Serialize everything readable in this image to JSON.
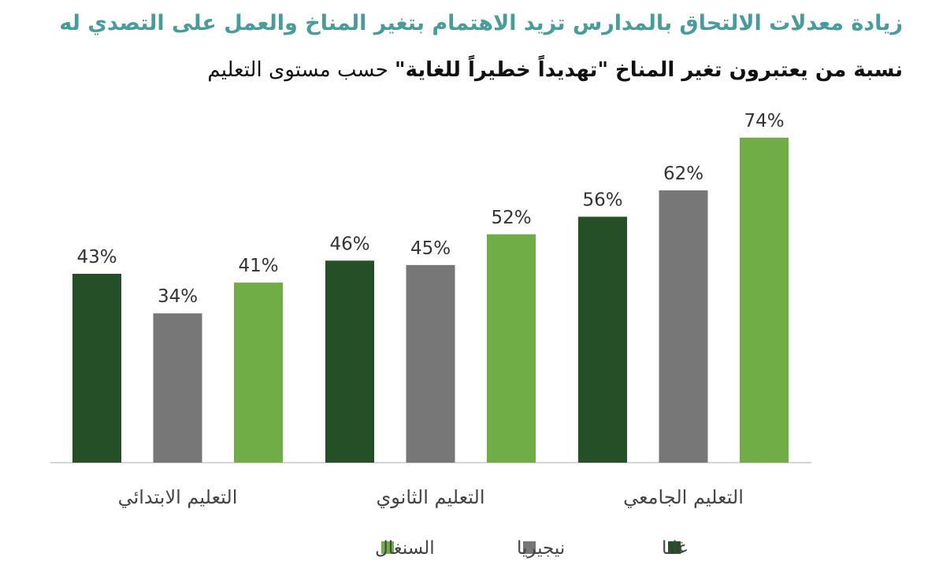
{
  "header": {
    "title": "زيادة معدلات الالتحاق بالمدارس تزيد الاهتمام بتغير المناخ والعمل على التصدي له",
    "subtitle_part1": "نسبة من يعتبرون تغير المناخ ",
    "subtitle_part2": "\"تهديداً خطيراً للغاية\"",
    "subtitle_part3": " حسب مستوى التعليم"
  },
  "chart_data": {
    "type": "bar",
    "categories": [
      "التعليم الابتدائي",
      "التعليم الثانوي",
      "التعليم الجامعي"
    ],
    "series": [
      {
        "name": "غانا",
        "color": "#244f27",
        "values": [
          43,
          46,
          56
        ]
      },
      {
        "name": "نيجيريا",
        "color": "#777777",
        "values": [
          34,
          45,
          62
        ]
      },
      {
        "name": "السنغال",
        "color": "#70ad47",
        "values": [
          41,
          52,
          74
        ]
      }
    ],
    "value_suffix": "%",
    "ylim": [
      0,
      74
    ],
    "grid": false,
    "legend_position": "bottom"
  }
}
